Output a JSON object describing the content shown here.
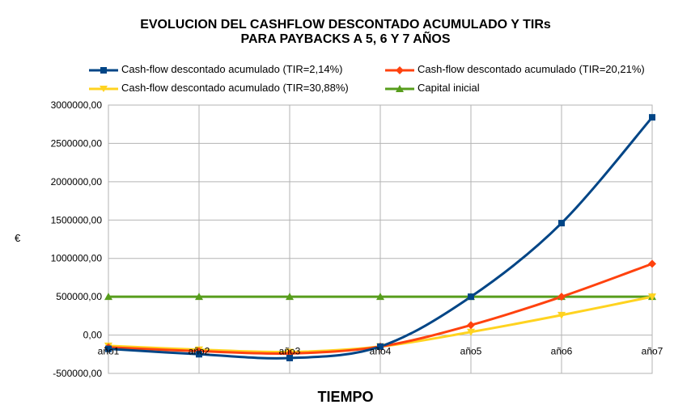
{
  "chart_data": {
    "type": "line",
    "title_line1": "EVOLUCION DEL CASHFLOW DESCONTADO ACUMULADO Y TIRs",
    "title_line2": "PARA PAYBACKS A 5, 6 Y 7 AÑOS",
    "xlabel": "TIEMPO",
    "ylabel": "€",
    "categories": [
      "año1",
      "año2",
      "año3",
      "año4",
      "año5",
      "año6",
      "año7"
    ],
    "ylim": [
      -500000,
      3000000
    ],
    "yticks": [
      "3000000,00",
      "2500000,00",
      "2000000,00",
      "1500000,00",
      "1000000,00",
      "500000,00",
      "0,00",
      "-500000,00"
    ],
    "ytick_values": [
      3000000,
      2500000,
      2000000,
      1500000,
      1000000,
      500000,
      0,
      -500000
    ],
    "grid": true,
    "legend_position": "top",
    "series": [
      {
        "name": "Cash-flow descontado acumulado (TIR=2,14%)",
        "color": "#004586",
        "marker": "square",
        "values": [
          -180000,
          -250000,
          -300000,
          -150000,
          500000,
          1460000,
          2840000
        ]
      },
      {
        "name": "Cash-flow descontado acumulado (TIR=20,21%)",
        "color": "#ff420e",
        "marker": "diamond",
        "values": [
          -160000,
          -210000,
          -240000,
          -150000,
          130000,
          500000,
          930000
        ]
      },
      {
        "name": "Cash-flow descontado acumulado (TIR=30,88%)",
        "color": "#ffd320",
        "marker": "triangle-down",
        "values": [
          -140000,
          -190000,
          -220000,
          -150000,
          40000,
          260000,
          500000
        ]
      },
      {
        "name": "Capital inicial",
        "color": "#579d1c",
        "marker": "triangle-up",
        "values": [
          500000,
          500000,
          500000,
          500000,
          500000,
          500000,
          500000
        ]
      }
    ]
  }
}
